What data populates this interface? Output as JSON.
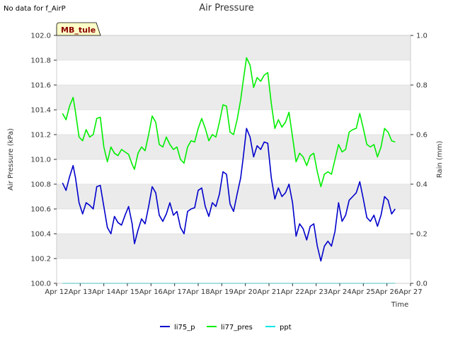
{
  "note": "No data for f_AirP",
  "site_badge": "MB_tule",
  "colors": {
    "li75_p": "#0000cc",
    "li77_pres": "#00ee00",
    "ppt": "#00e5e5",
    "band": "#ebebeb",
    "badge_fill": "#ffffc8",
    "badge_text": "#8b0000"
  },
  "chart_data": {
    "type": "line",
    "title": "Air Pressure",
    "xlabel": "Time",
    "ylabel": "Air Pressure (kPa)",
    "y2label": "Rain (mm)",
    "x_ticks": [
      "Apr 12",
      "Apr 13",
      "Apr 14",
      "Apr 15",
      "Apr 16",
      "Apr 17",
      "Apr 18",
      "Apr 19",
      "Apr 20",
      "Apr 21",
      "Apr 22",
      "Apr 23",
      "Apr 24",
      "Apr 25",
      "Apr 26",
      "Apr 27"
    ],
    "xlim": [
      0,
      15
    ],
    "ylim": [
      100.0,
      102.0
    ],
    "y_ticks": [
      "100.0",
      "100.2",
      "100.4",
      "100.6",
      "100.8",
      "101.0",
      "101.2",
      "101.4",
      "101.6",
      "101.8",
      "102.0"
    ],
    "y2lim": [
      0.0,
      1.0
    ],
    "y2_ticks": [
      "0.0",
      "0.2",
      "0.4",
      "0.6",
      "0.8",
      "1.0"
    ],
    "legend": [
      "li75_p",
      "li77_pres",
      "ppt"
    ],
    "series": [
      {
        "name": "li75_p",
        "x": [
          0.25,
          0.4,
          0.55,
          0.7,
          0.8,
          0.95,
          1.1,
          1.25,
          1.4,
          1.55,
          1.7,
          1.85,
          2.0,
          2.15,
          2.3,
          2.45,
          2.6,
          2.75,
          2.9,
          3.05,
          3.2,
          3.3,
          3.45,
          3.6,
          3.75,
          3.9,
          4.05,
          4.2,
          4.35,
          4.5,
          4.65,
          4.8,
          4.95,
          5.1,
          5.25,
          5.4,
          5.55,
          5.7,
          5.85,
          6.0,
          6.15,
          6.3,
          6.45,
          6.6,
          6.75,
          6.9,
          7.05,
          7.2,
          7.35,
          7.5,
          7.65,
          7.8,
          7.9,
          8.05,
          8.2,
          8.35,
          8.5,
          8.65,
          8.8,
          8.95,
          9.1,
          9.25,
          9.4,
          9.55,
          9.7,
          9.85,
          10.0,
          10.15,
          10.3,
          10.45,
          10.6,
          10.75,
          10.9,
          11.05,
          11.2,
          11.35,
          11.5,
          11.65,
          11.8,
          11.95,
          12.1,
          12.25,
          12.4,
          12.55,
          12.7,
          12.85,
          13.0,
          13.15,
          13.3,
          13.45,
          13.6,
          13.75,
          13.9,
          14.05,
          14.2,
          14.35
        ],
        "values": [
          100.81,
          100.75,
          100.86,
          100.95,
          100.85,
          100.65,
          100.56,
          100.65,
          100.63,
          100.6,
          100.78,
          100.79,
          100.62,
          100.45,
          100.4,
          100.54,
          100.49,
          100.47,
          100.55,
          100.62,
          100.48,
          100.32,
          100.43,
          100.52,
          100.48,
          100.62,
          100.78,
          100.73,
          100.55,
          100.5,
          100.56,
          100.65,
          100.55,
          100.58,
          100.45,
          100.4,
          100.58,
          100.6,
          100.61,
          100.75,
          100.77,
          100.62,
          100.54,
          100.65,
          100.62,
          100.72,
          100.9,
          100.88,
          100.64,
          100.58,
          100.72,
          100.85,
          101.0,
          101.25,
          101.18,
          101.02,
          101.11,
          101.08,
          101.14,
          101.13,
          100.85,
          100.68,
          100.77,
          100.7,
          100.73,
          100.8,
          100.65,
          100.38,
          100.48,
          100.44,
          100.35,
          100.46,
          100.48,
          100.3,
          100.18,
          100.3,
          100.34,
          100.3,
          100.42,
          100.65,
          100.5,
          100.55,
          100.67,
          100.7,
          100.73,
          100.82,
          100.68,
          100.53,
          100.5,
          100.55,
          100.46,
          100.55,
          100.7,
          100.67,
          100.56,
          100.6
        ]
      },
      {
        "name": "li77_pres",
        "x": [
          0.25,
          0.4,
          0.55,
          0.7,
          0.8,
          0.95,
          1.1,
          1.25,
          1.4,
          1.55,
          1.7,
          1.85,
          2.0,
          2.15,
          2.3,
          2.45,
          2.6,
          2.75,
          2.9,
          3.05,
          3.2,
          3.3,
          3.45,
          3.6,
          3.75,
          3.9,
          4.05,
          4.2,
          4.35,
          4.5,
          4.65,
          4.8,
          4.95,
          5.1,
          5.25,
          5.4,
          5.55,
          5.7,
          5.85,
          6.0,
          6.15,
          6.3,
          6.45,
          6.6,
          6.75,
          6.9,
          7.05,
          7.2,
          7.35,
          7.5,
          7.65,
          7.8,
          7.9,
          8.05,
          8.2,
          8.35,
          8.5,
          8.65,
          8.8,
          8.95,
          9.1,
          9.25,
          9.4,
          9.55,
          9.7,
          9.85,
          10.0,
          10.15,
          10.3,
          10.45,
          10.6,
          10.75,
          10.9,
          11.05,
          11.2,
          11.35,
          11.5,
          11.65,
          11.8,
          11.95,
          12.1,
          12.25,
          12.4,
          12.55,
          12.7,
          12.85,
          13.0,
          13.15,
          13.3,
          13.45,
          13.6,
          13.75,
          13.9,
          14.05,
          14.2,
          14.35
        ],
        "values": [
          101.37,
          101.32,
          101.43,
          101.5,
          101.38,
          101.18,
          101.15,
          101.24,
          101.18,
          101.2,
          101.33,
          101.34,
          101.1,
          100.98,
          101.1,
          101.05,
          101.03,
          101.08,
          101.06,
          101.04,
          100.96,
          100.92,
          101.05,
          101.1,
          101.07,
          101.2,
          101.35,
          101.3,
          101.12,
          101.1,
          101.18,
          101.12,
          101.08,
          101.1,
          101.0,
          100.97,
          101.1,
          101.15,
          101.14,
          101.25,
          101.33,
          101.25,
          101.15,
          101.2,
          101.18,
          101.3,
          101.44,
          101.43,
          101.22,
          101.2,
          101.32,
          101.48,
          101.62,
          101.82,
          101.76,
          101.58,
          101.66,
          101.63,
          101.68,
          101.7,
          101.45,
          101.25,
          101.32,
          101.26,
          101.3,
          101.38,
          101.18,
          100.98,
          101.05,
          101.02,
          100.95,
          101.03,
          101.05,
          100.9,
          100.78,
          100.88,
          100.9,
          100.88,
          101.0,
          101.12,
          101.06,
          101.08,
          101.22,
          101.24,
          101.25,
          101.37,
          101.25,
          101.12,
          101.1,
          101.12,
          101.02,
          101.1,
          101.25,
          101.22,
          101.15,
          101.14
        ]
      },
      {
        "name": "ppt",
        "axis": "rain",
        "x": [
          0.25,
          14.35
        ],
        "values": [
          0.0,
          0.0
        ]
      }
    ]
  }
}
